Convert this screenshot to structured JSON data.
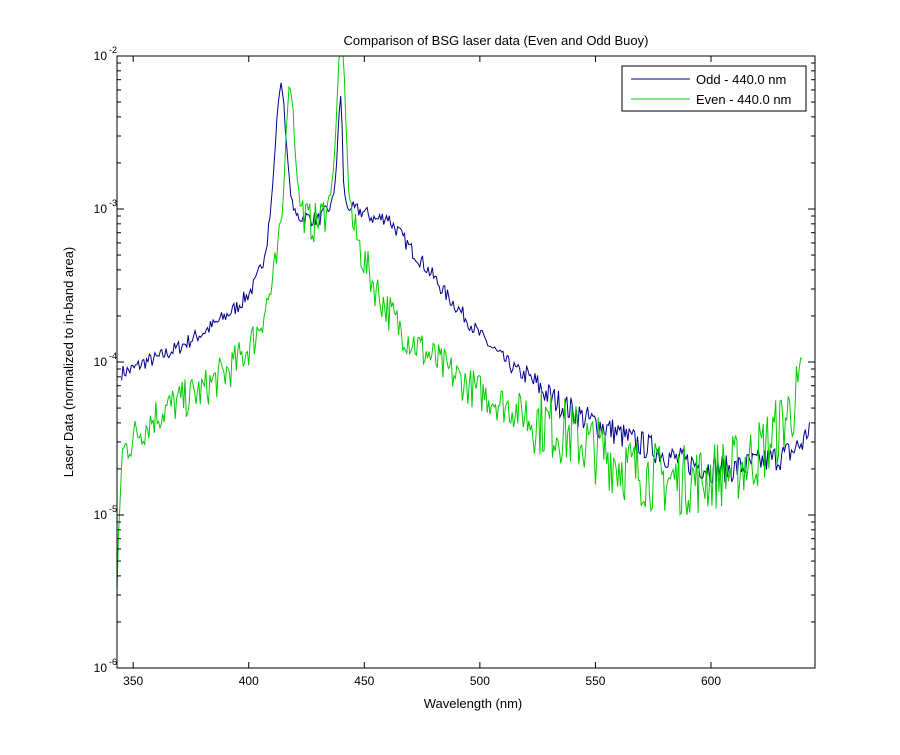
{
  "chart_data": {
    "type": "line",
    "title": "Comparison of BSG laser data (Even and Odd Buoy)",
    "xlabel": "Wavelength (nm)",
    "ylabel": "Laser Data (normalized to in-band area)",
    "xlim": [
      343,
      645
    ],
    "ylim": [
      1e-06,
      0.01
    ],
    "yscale": "log",
    "grid": false,
    "legend_position": "top-right",
    "x_ticks": [
      350,
      400,
      450,
      500,
      550,
      600
    ],
    "x_tick_labels": [
      "350",
      "400",
      "450",
      "500",
      "550",
      "600"
    ],
    "y_ticks": [
      1e-06,
      1e-05,
      0.0001,
      0.001,
      0.01
    ],
    "y_tick_labels": [
      {
        "base": "10",
        "exp": "-6"
      },
      {
        "base": "10",
        "exp": "-5"
      },
      {
        "base": "10",
        "exp": "-4"
      },
      {
        "base": "10",
        "exp": "-3"
      },
      {
        "base": "10",
        "exp": "-2"
      }
    ],
    "series": [
      {
        "name": "Odd - 440.0 nm",
        "color": "#00008b",
        "x": [
          345,
          350,
          355,
          360,
          365,
          370,
          375,
          380,
          385,
          390,
          395,
          400,
          403,
          406,
          408,
          410,
          411,
          412,
          413,
          414,
          415,
          416,
          418,
          420,
          425,
          430,
          435,
          437,
          438,
          439,
          440,
          441,
          442,
          443,
          445,
          450,
          455,
          460,
          462,
          465,
          470,
          475,
          480,
          485,
          490,
          495,
          500,
          505,
          510,
          515,
          520,
          525,
          530,
          535,
          540,
          545,
          550,
          555,
          560,
          565,
          570,
          575,
          580,
          585,
          590,
          595,
          600,
          605,
          610,
          615,
          620,
          625,
          630,
          635,
          640,
          643
        ],
        "y": [
          8.5e-05,
          9e-05,
          0.0001,
          0.000105,
          0.000115,
          0.000125,
          0.00014,
          0.000155,
          0.000175,
          0.0002,
          0.00023,
          0.00028,
          0.00033,
          0.00045,
          0.00065,
          0.0012,
          0.002,
          0.0035,
          0.0055,
          0.0065,
          0.0055,
          0.003,
          0.0013,
          0.0009,
          0.00088,
          0.00085,
          0.001,
          0.0013,
          0.002,
          0.004,
          0.006,
          0.0015,
          0.0011,
          0.001,
          0.001,
          0.00095,
          0.00085,
          0.0009,
          0.0008,
          0.0007,
          0.00055,
          0.00045,
          0.00036,
          0.00028,
          0.00023,
          0.000185,
          0.00015,
          0.000125,
          0.000105,
          9e-05,
          8e-05,
          7e-05,
          6e-05,
          5.3e-05,
          4.8e-05,
          4.3e-05,
          4e-05,
          3.7e-05,
          3.4e-05,
          3.1e-05,
          2.9e-05,
          2.7e-05,
          2.5e-05,
          2.3e-05,
          2.2e-05,
          2.1e-05,
          2e-05,
          2e-05,
          2e-05,
          2.1e-05,
          2.2e-05,
          2.3e-05,
          2.4e-05,
          2.6e-05,
          3e-05,
          4e-05
        ]
      },
      {
        "name": "Even - 440.0 nm",
        "color": "#00cc00",
        "x": [
          343,
          345,
          350,
          355,
          360,
          365,
          370,
          375,
          380,
          385,
          390,
          395,
          400,
          403,
          406,
          410,
          413,
          415,
          416,
          417,
          418,
          419,
          420,
          422,
          425,
          428,
          430,
          433,
          435,
          437,
          438,
          439,
          440,
          441,
          442,
          443,
          445,
          450,
          455,
          460,
          465,
          470,
          475,
          480,
          485,
          490,
          495,
          500,
          505,
          510,
          515,
          520,
          525,
          530,
          535,
          540,
          545,
          550,
          555,
          560,
          565,
          570,
          575,
          580,
          585,
          590,
          595,
          600,
          605,
          610,
          615,
          620,
          625,
          630,
          635,
          640
        ],
        "y": [
          3e-06,
          2.5e-05,
          3.2e-05,
          3.8e-05,
          4.5e-05,
          5e-05,
          5.5e-05,
          6e-05,
          6.5e-05,
          7.5e-05,
          8.5e-05,
          0.0001,
          0.000125,
          0.00015,
          0.0002,
          0.0003,
          0.00055,
          0.0012,
          0.003,
          0.0055,
          0.0065,
          0.005,
          0.0025,
          0.0011,
          0.00085,
          0.0008,
          0.00085,
          0.00095,
          0.0012,
          0.002,
          0.004,
          0.01,
          0.01,
          0.01,
          0.004,
          0.0015,
          0.0008,
          0.00045,
          0.0003,
          0.00022,
          0.00017,
          0.00014,
          0.00012,
          0.000105,
          9e-05,
          8e-05,
          7e-05,
          6.3e-05,
          5.8e-05,
          5.3e-05,
          4.9e-05,
          4.5e-05,
          4.2e-05,
          3.9e-05,
          3.6e-05,
          3.3e-05,
          3e-05,
          2.7e-05,
          2.5e-05,
          2.2e-05,
          2e-05,
          1.9e-05,
          1.8e-05,
          1.7e-05,
          1.7e-05,
          1.7e-05,
          1.7e-05,
          1.8e-05,
          1.9e-05,
          2e-05,
          2.2e-05,
          2.5e-05,
          3e-05,
          3.8e-05,
          5e-05,
          7.5e-05
        ]
      }
    ]
  }
}
